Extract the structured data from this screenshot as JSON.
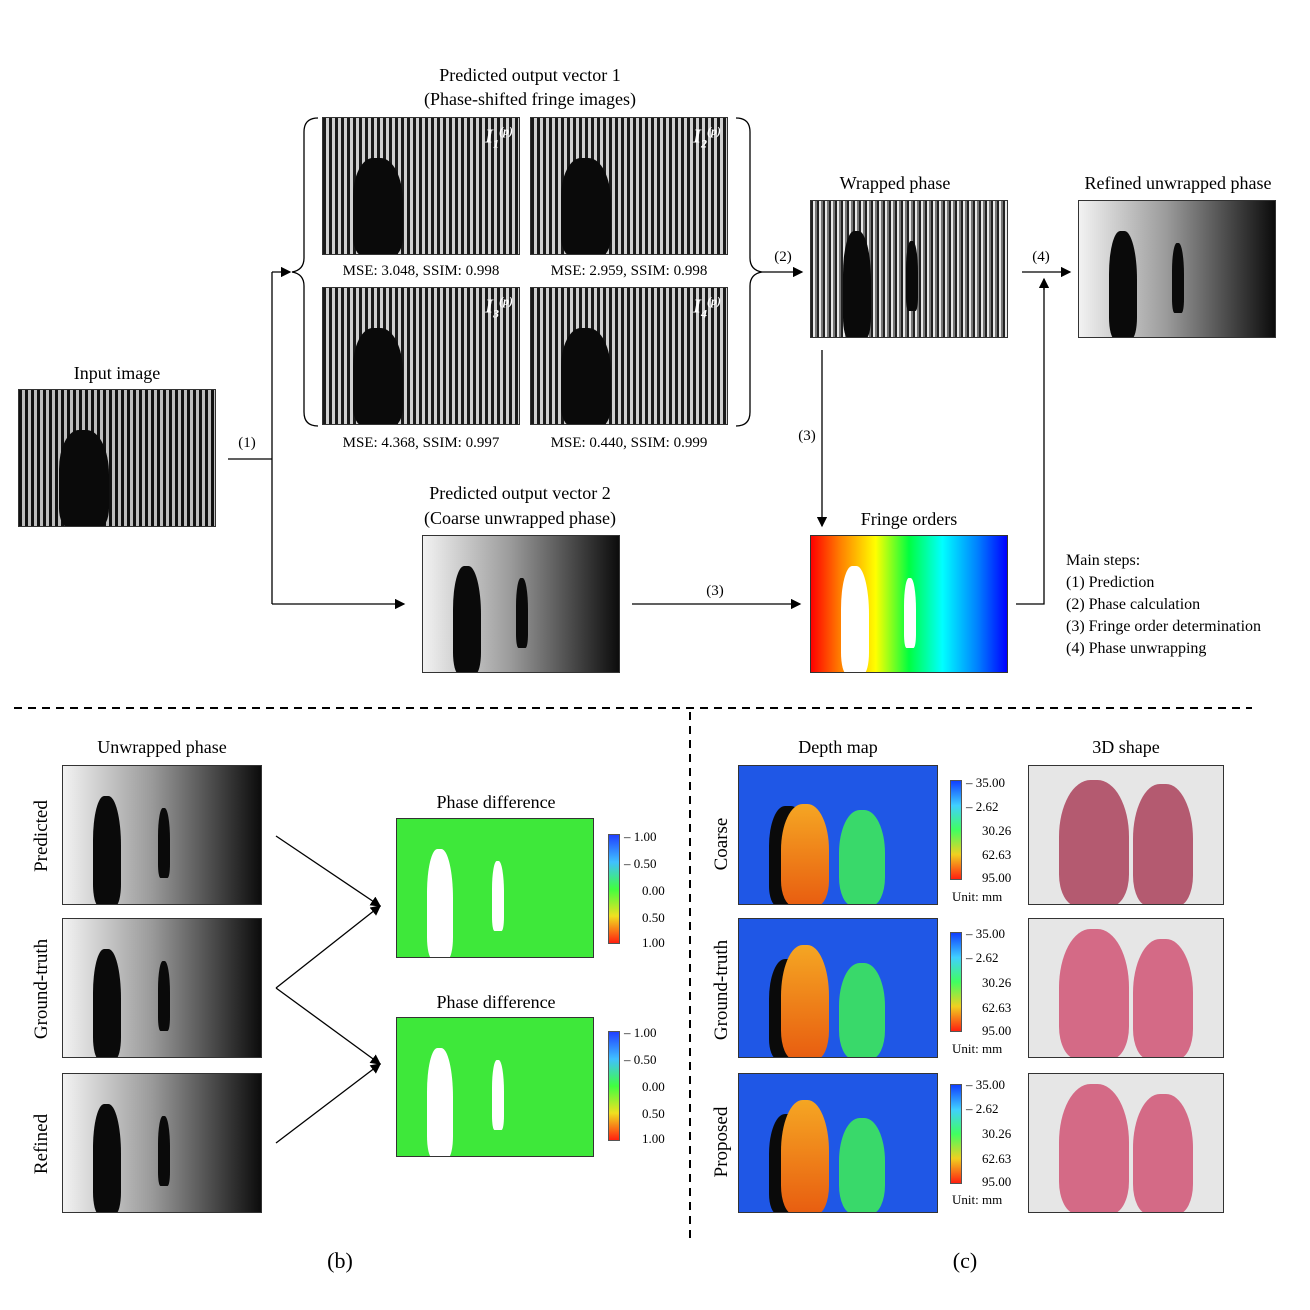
{
  "top": {
    "input_image_label": "Input image",
    "vector1_title": "Predicted output vector 1",
    "vector1_subtitle": "(Phase-shifted fringe images)",
    "fringe_images": [
      {
        "symbol": "I",
        "sub": "1",
        "sup": "(p)",
        "metric": "MSE: 3.048, SSIM: 0.998"
      },
      {
        "symbol": "I",
        "sub": "2",
        "sup": "(p)",
        "metric": "MSE: 2.959, SSIM: 0.998"
      },
      {
        "symbol": "I",
        "sub": "3",
        "sup": "(p)",
        "metric": "MSE: 4.368, SSIM: 0.997"
      },
      {
        "symbol": "I",
        "sub": "4",
        "sup": "(p)",
        "metric": "MSE: 0.440, SSIM: 0.999"
      }
    ],
    "wrapped_phase_label": "Wrapped phase",
    "refined_label": "Refined unwrapped phase",
    "vector2_title": "Predicted output vector 2",
    "vector2_subtitle": "(Coarse unwrapped phase)",
    "fringe_orders_label": "Fringe orders",
    "arrows": {
      "a1": "(1)",
      "a2": "(2)",
      "a3a": "(3)",
      "a3b": "(3)",
      "a4": "(4)"
    },
    "steps_title": "Main steps:",
    "steps": [
      "(1) Prediction",
      "(2) Phase calculation",
      "(3) Fringe order determination",
      "(4) Phase unwrapping"
    ]
  },
  "panel_b": {
    "column_title": "Unwrapped phase",
    "rows": [
      "Predicted",
      "Ground-truth",
      "Refined"
    ],
    "diff_title_1": "Phase difference",
    "diff_title_2": "Phase difference",
    "colorbar_ticks": [
      "– 1.00",
      "– 0.50",
      "0.00",
      "0.50",
      "1.00"
    ],
    "caption": "(b)"
  },
  "panel_c": {
    "depth_title": "Depth map",
    "shape_title": "3D shape",
    "rows": [
      "Coarse",
      "Ground-truth",
      "Proposed"
    ],
    "colorbar_ticks": [
      "– 35.00",
      "– 2.62",
      "30.26",
      "62.63",
      "95.00"
    ],
    "unit": "Unit: mm",
    "caption": "(c)"
  }
}
